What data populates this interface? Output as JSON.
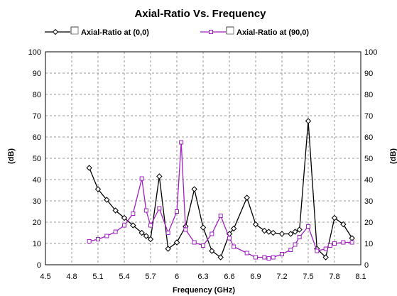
{
  "chart_data": {
    "type": "line",
    "title": "Axial-Ratio Vs. Frequency",
    "xlabel": "Frequency (GHz)",
    "ylabel": "(dB)",
    "ylabel_right": "(dB)",
    "xlim": [
      4.5,
      8.1
    ],
    "ylim": [
      0,
      100
    ],
    "xticks": [
      "4.5",
      "4.8",
      "5.1",
      "5.4",
      "5.7",
      "6",
      "6.3",
      "6.6",
      "6.9",
      "7.2",
      "7.5",
      "7.8",
      "8.1"
    ],
    "yticks": [
      "0",
      "10",
      "20",
      "30",
      "40",
      "50",
      "60",
      "70",
      "80",
      "90",
      "100"
    ],
    "grid": true,
    "legend_position": "top",
    "series": [
      {
        "name": "Axial-Ratio at (0,0)",
        "color": "#000000",
        "marker": "diamond",
        "x": [
          5.0,
          5.1,
          5.2,
          5.3,
          5.4,
          5.5,
          5.6,
          5.65,
          5.7,
          5.8,
          5.9,
          6.0,
          6.1,
          6.2,
          6.3,
          6.4,
          6.5,
          6.6,
          6.65,
          6.8,
          6.9,
          7.0,
          7.05,
          7.1,
          7.2,
          7.3,
          7.35,
          7.4,
          7.5,
          7.6,
          7.7,
          7.8,
          7.9,
          8.0
        ],
        "values": [
          45.5,
          35.5,
          30.5,
          25.5,
          22,
          18.5,
          15,
          13.5,
          12,
          41.5,
          7.5,
          10.5,
          18,
          35.5,
          17.5,
          6.5,
          3.5,
          14.5,
          17,
          31.5,
          19,
          16,
          15.5,
          15,
          14.5,
          14.5,
          15.5,
          16.5,
          67.5,
          7.5,
          3.5,
          22,
          19,
          12.5
        ]
      },
      {
        "name": "Axial-Ratio at (90,0)",
        "color": "#a020c0",
        "marker": "square",
        "x": [
          5.0,
          5.1,
          5.2,
          5.3,
          5.4,
          5.5,
          5.6,
          5.65,
          5.7,
          5.8,
          5.9,
          6.0,
          6.05,
          6.1,
          6.2,
          6.3,
          6.4,
          6.5,
          6.6,
          6.65,
          6.8,
          6.9,
          7.0,
          7.05,
          7.1,
          7.2,
          7.3,
          7.35,
          7.4,
          7.5,
          7.6,
          7.7,
          7.75,
          7.8,
          7.9,
          8.0
        ],
        "values": [
          11,
          12,
          13.5,
          15.5,
          18.5,
          24,
          40.5,
          25.5,
          18.5,
          26.5,
          15,
          25,
          57.5,
          16.5,
          10.5,
          9,
          14.5,
          23,
          12.5,
          8.5,
          5.5,
          3.5,
          3.5,
          3,
          3.5,
          5,
          7,
          9.5,
          13,
          18,
          6.5,
          7.5,
          9,
          10,
          10.5,
          10.5
        ]
      }
    ]
  }
}
